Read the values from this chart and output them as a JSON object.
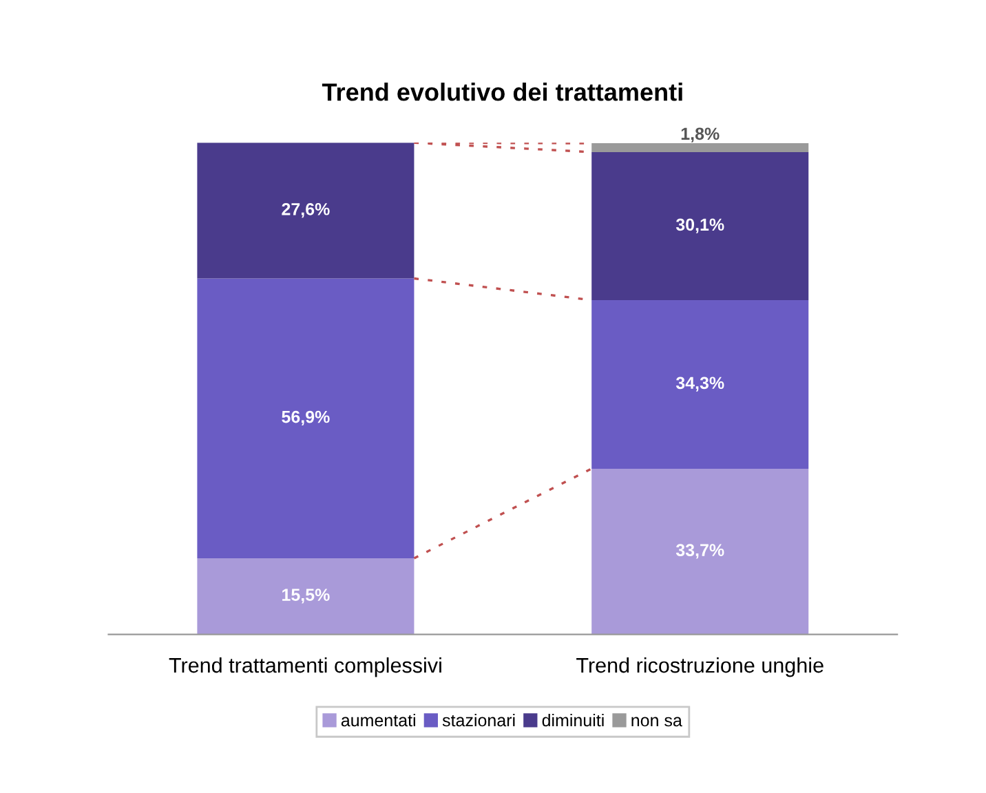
{
  "chart_data": {
    "type": "bar",
    "title": "Trend evolutivo dei trattamenti",
    "categories": [
      "Trend trattamenti complessivi",
      "Trend ricostruzione unghie"
    ],
    "stacked": true,
    "legend": "bottom",
    "grid": false,
    "series": [
      {
        "name": "aumentati",
        "color": "#a99ad9",
        "values": [
          15.5,
          33.7
        ],
        "value_labels": [
          "15,5%",
          "33,7%"
        ]
      },
      {
        "name": "stazionari",
        "color": "#6a5cc4",
        "values": [
          56.9,
          34.3
        ],
        "value_labels": [
          "56,9%",
          "34,3%"
        ]
      },
      {
        "name": "diminuiti",
        "color": "#4a3b8c",
        "values": [
          27.6,
          30.1
        ],
        "value_labels": [
          "27,6%",
          "30,1%"
        ]
      },
      {
        "name": "non sa",
        "color": "#9a9a9a",
        "values": [
          null,
          1.8
        ],
        "value_labels": [
          null,
          "1,8%"
        ]
      }
    ]
  }
}
